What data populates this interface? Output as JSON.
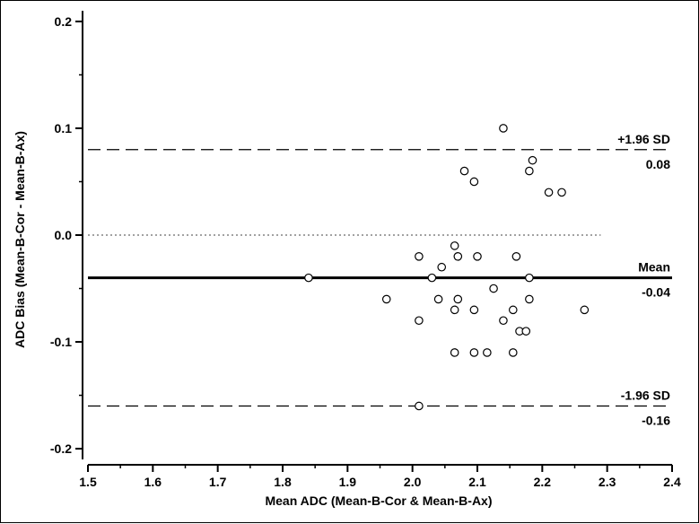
{
  "chart_data": {
    "type": "scatter",
    "xlabel": "Mean ADC (Mean-B-Cor & Mean-B-Ax)",
    "ylabel": "ADC Bias (Mean-B-Cor - Mean-B-Ax)",
    "xlim": [
      1.5,
      2.4
    ],
    "ylim": [
      -0.21,
      0.21
    ],
    "x_ticks": [
      "1.5",
      "1.6",
      "1.7",
      "1.8",
      "1.9",
      "2.0",
      "2.1",
      "2.2",
      "2.3",
      "2.4"
    ],
    "y_ticks": [
      "0.2",
      "0.1",
      "0.0",
      "-0.1",
      "-0.2"
    ],
    "reference_lines": [
      {
        "label": "+1.96 SD",
        "value_label": "0.08",
        "y": 0.08,
        "style": "dashed"
      },
      {
        "label": "Mean",
        "value_label": "-0.04",
        "y": -0.04,
        "style": "solid"
      },
      {
        "label": "-1.96 SD",
        "value_label": "-0.16",
        "y": -0.16,
        "style": "dashed"
      }
    ],
    "zero_line": {
      "y": 0.0,
      "style": "dotted",
      "x_end": 2.29
    },
    "points": [
      {
        "x": 1.84,
        "y": -0.04
      },
      {
        "x": 1.96,
        "y": -0.06
      },
      {
        "x": 2.01,
        "y": -0.02
      },
      {
        "x": 2.01,
        "y": -0.08
      },
      {
        "x": 2.01,
        "y": -0.16
      },
      {
        "x": 2.03,
        "y": -0.04
      },
      {
        "x": 2.04,
        "y": -0.06
      },
      {
        "x": 2.045,
        "y": -0.03
      },
      {
        "x": 2.065,
        "y": -0.01
      },
      {
        "x": 2.065,
        "y": -0.07
      },
      {
        "x": 2.065,
        "y": -0.11
      },
      {
        "x": 2.07,
        "y": -0.02
      },
      {
        "x": 2.07,
        "y": -0.06
      },
      {
        "x": 2.08,
        "y": 0.06
      },
      {
        "x": 2.095,
        "y": 0.05
      },
      {
        "x": 2.095,
        "y": -0.07
      },
      {
        "x": 2.095,
        "y": -0.11
      },
      {
        "x": 2.1,
        "y": -0.02
      },
      {
        "x": 2.115,
        "y": -0.11
      },
      {
        "x": 2.125,
        "y": -0.05
      },
      {
        "x": 2.14,
        "y": 0.1
      },
      {
        "x": 2.14,
        "y": -0.08
      },
      {
        "x": 2.155,
        "y": -0.07
      },
      {
        "x": 2.155,
        "y": -0.11
      },
      {
        "x": 2.16,
        "y": -0.02
      },
      {
        "x": 2.165,
        "y": -0.09
      },
      {
        "x": 2.175,
        "y": -0.09
      },
      {
        "x": 2.18,
        "y": 0.06
      },
      {
        "x": 2.18,
        "y": -0.04
      },
      {
        "x": 2.18,
        "y": -0.06
      },
      {
        "x": 2.185,
        "y": 0.07
      },
      {
        "x": 2.21,
        "y": 0.04
      },
      {
        "x": 2.23,
        "y": 0.04
      },
      {
        "x": 2.265,
        "y": -0.07
      }
    ]
  }
}
